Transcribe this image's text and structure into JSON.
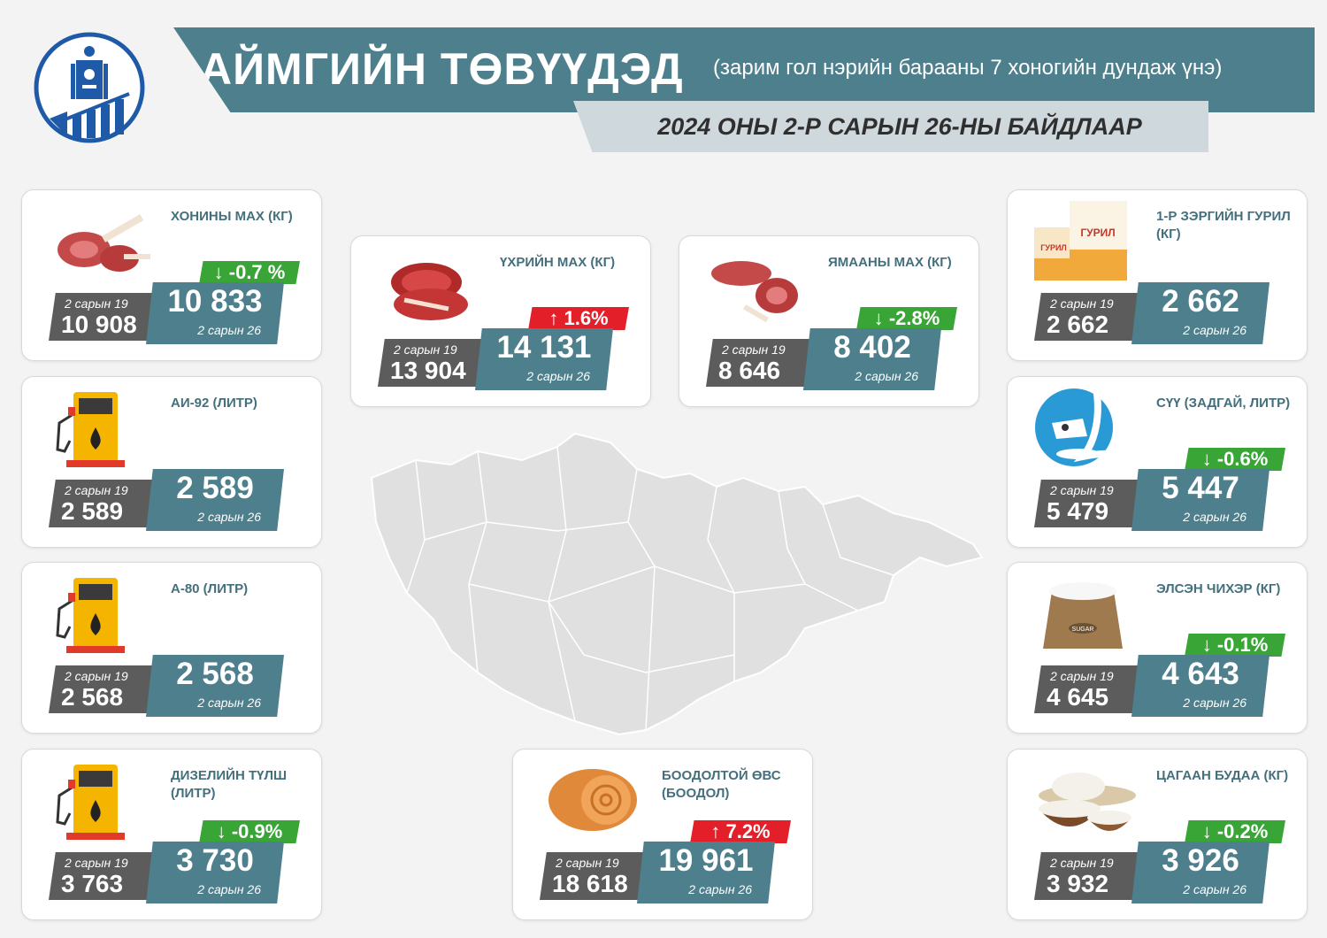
{
  "header": {
    "title": "АЙМГИЙН ТӨВҮҮДЭД",
    "subtitle": "(зарим гол нэрийн барааны 7 хоногийн дундаж үнэ)",
    "date_line": "2024 ОНЫ 2-Р САРЫН 26-НЫ БАЙДЛААР"
  },
  "colors": {
    "accent": "#4d7f8c",
    "old_box": "#5c5c5c",
    "decrease": "#3aa537",
    "increase": "#e3202a",
    "label": "#43707c"
  },
  "cards": {
    "mutton": {
      "name": "ХОНИНЫ МАХ (КГ)",
      "icon": "mutton-meat-icon",
      "old_label": "2 сарын 19",
      "old_value": "10 908",
      "new_value": "10 833",
      "new_label": "2 сарын 26",
      "change": "↓ -0.7 %",
      "direction": "down"
    },
    "beef": {
      "name": "ҮХРИЙН МАХ (КГ)",
      "icon": "beef-steak-icon",
      "old_label": "2 сарын 19",
      "old_value": "13 904",
      "new_value": "14 131",
      "new_label": "2 сарын 26",
      "change": "↑ 1.6%",
      "direction": "up"
    },
    "goat": {
      "name": "ЯМААНЫ МАХ (КГ)",
      "icon": "goat-meat-icon",
      "old_label": "2 сарын 19",
      "old_value": "8 646",
      "new_value": "8 402",
      "new_label": "2 сарын 26",
      "change": "↓ -2.8%",
      "direction": "down"
    },
    "flour": {
      "name": "1-Р ЗЭРГИЙН ГУРИЛ (КГ)",
      "icon": "flour-bag-icon",
      "icon_text": "ГУРИЛ",
      "old_label": "2 сарын 19",
      "old_value": "2 662",
      "new_value": "2 662",
      "new_label": "2 сарын 26",
      "change": "",
      "direction": "none"
    },
    "ai92": {
      "name": "АИ-92 (ЛИТР)",
      "icon": "fuel-pump-icon",
      "old_label": "2 сарын 19",
      "old_value": "2 589",
      "new_value": "2 589",
      "new_label": "2 сарын 26",
      "change": "",
      "direction": "none"
    },
    "milk": {
      "name": "СҮҮ (ЗАДГАЙ, ЛИТР)",
      "icon": "milk-cow-icon",
      "old_label": "2 сарын 19",
      "old_value": "5 479",
      "new_value": "5 447",
      "new_label": "2 сарын 26",
      "change": "↓ -0.6%",
      "direction": "down"
    },
    "a80": {
      "name": "А-80 (ЛИТР)",
      "icon": "fuel-pump-icon",
      "old_label": "2 сарын 19",
      "old_value": "2 568",
      "new_value": "2 568",
      "new_label": "2 сарын 26",
      "change": "",
      "direction": "none"
    },
    "sugar": {
      "name": "ЭЛСЭН ЧИХЭР (КГ)",
      "icon": "sugar-sack-icon",
      "icon_text": "SUGAR",
      "old_label": "2 сарын 19",
      "old_value": "4 645",
      "new_value": "4 643",
      "new_label": "2 сарын 26",
      "change": "↓ -0.1%",
      "direction": "down"
    },
    "diesel": {
      "name": "ДИЗЕЛИЙН ТҮЛШ (ЛИТР)",
      "icon": "fuel-pump-icon",
      "old_label": "2 сарын 19",
      "old_value": "3 763",
      "new_value": "3 730",
      "new_label": "2 сарын 26",
      "change": "↓ -0.9%",
      "direction": "down"
    },
    "hay": {
      "name": "БООДОЛТОЙ ӨВС (БООДОЛ)",
      "icon": "hay-bale-icon",
      "old_label": "2 сарын 19",
      "old_value": "18 618",
      "new_value": "19 961",
      "new_label": "2 сарын 26",
      "change": "↑ 7.2%",
      "direction": "up"
    },
    "rice": {
      "name": "ЦАГААН БУДАА (КГ)",
      "icon": "rice-bowl-icon",
      "old_label": "2 сарын 19",
      "old_value": "3 932",
      "new_value": "3 926",
      "new_label": "2 сарын 26",
      "change": "↓ -0.2%",
      "direction": "down"
    }
  }
}
